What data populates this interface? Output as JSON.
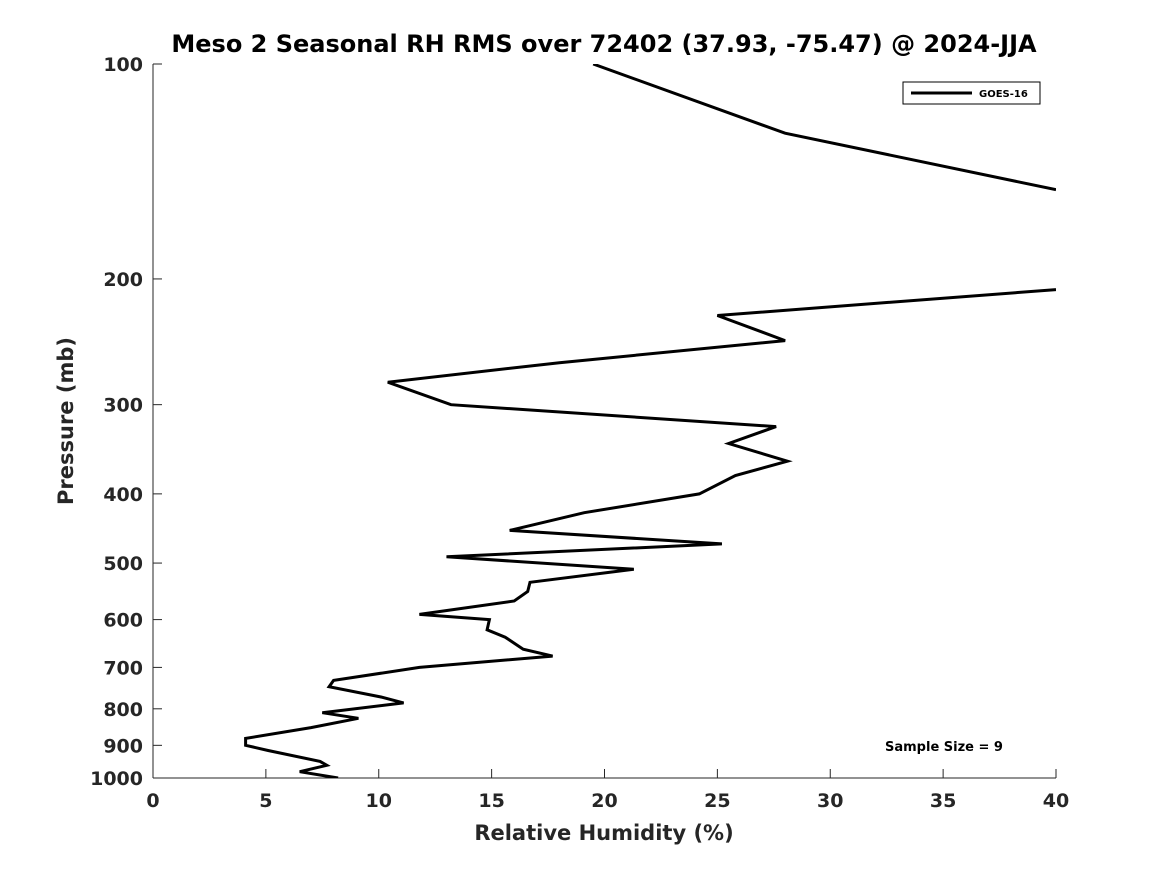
{
  "chart_data": {
    "type": "line",
    "title": "Meso 2 Seasonal RH RMS over 72402 (37.93, -75.47) @ 2024-JJA",
    "xlabel": "Relative Humidity (%)",
    "ylabel": "Pressure (mb)",
    "xlim": [
      0,
      40
    ],
    "ylim": [
      100,
      1000
    ],
    "y_scale": "log",
    "y_direction": "reversed",
    "x_ticks": [
      "0",
      "5",
      "10",
      "15",
      "20",
      "25",
      "30",
      "35",
      "40"
    ],
    "y_ticks": [
      "100",
      "200",
      "300",
      "400",
      "500",
      "600",
      "700",
      "800",
      "900",
      "1000"
    ],
    "grid": false,
    "legend_position": "top-right",
    "annotation": "Sample Size = 9",
    "colors": {
      "series": "#000000",
      "axes": "#262626"
    },
    "series": [
      {
        "name": "GOES-16",
        "segments": [
          {
            "x": [
              19.5,
              28.0,
              40.0
            ],
            "y": [
              100,
              125,
              150
            ]
          },
          {
            "x": [
              40.0,
              25.0,
              28.0,
              18.0,
              10.4,
              13.2,
              27.6,
              25.5,
              28.1,
              25.8,
              24.2,
              19.1,
              15.8,
              25.2,
              13.0,
              21.3,
              16.7,
              16.6,
              16.0,
              11.8,
              14.9,
              14.8,
              15.6,
              16.4,
              17.7,
              11.8,
              8.0,
              7.8,
              10.1,
              11.1,
              7.5,
              9.1,
              7.0,
              4.1,
              4.1,
              5.1,
              7.4,
              7.7,
              6.5,
              8.2
            ],
            "y": [
              207,
              225,
              244,
              262,
              279,
              300,
              322,
              340,
              360,
              377,
              400,
              425,
              450,
              470,
              490,
              510,
              532,
              548,
              565,
              590,
              600,
              620,
              635,
              660,
              675,
              700,
              730,
              745,
              770,
              785,
              810,
              825,
              850,
              880,
              900,
              915,
              948,
              960,
              980,
              1000
            ]
          }
        ]
      }
    ]
  }
}
